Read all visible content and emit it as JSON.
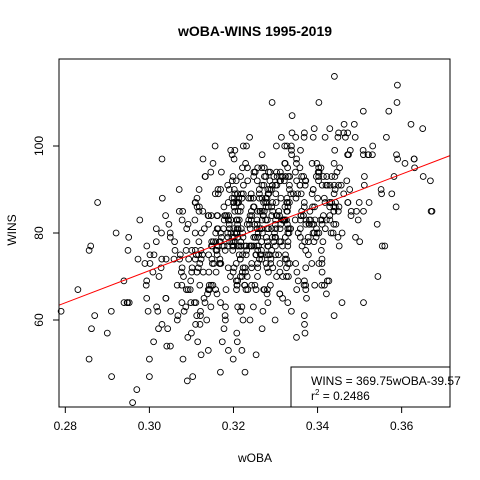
{
  "chart_data": {
    "type": "scatter",
    "title": "wOBA-WINS 1995-2019",
    "xlabel": "wOBA",
    "ylabel": "WINS",
    "xlim": [
      0.2785,
      0.3715
    ],
    "ylim": [
      40,
      120
    ],
    "xticks": [
      "0.28",
      "0.30",
      "0.32",
      "0.34",
      "0.36"
    ],
    "yticks": [
      "60",
      "80",
      "100"
    ],
    "grid": false,
    "regression": {
      "slope": 369.75,
      "intercept": -39.57,
      "color": "#ff0000"
    },
    "legend": {
      "position": "bottom-right",
      "equation": "WINS = 369.75wOBA-39.57",
      "r2_prefix": "r",
      "r2_sup": "2",
      "r2_value": " = 0.2486"
    },
    "points_note": "750 team-seasons; scatter cloud centered near wOBA 0.325 / 81 wins",
    "series": [
      {
        "x": [
          0.279,
          0.283,
          0.287,
          0.29,
          0.291,
          0.296,
          0.297,
          0.3,
          0.3,
          0.301,
          0.303,
          0.305,
          0.308,
          0.31,
          0.311,
          0.3115,
          0.314,
          0.318,
          0.321,
          0.322,
          0.327,
          0.331,
          0.335,
          0.337,
          0.341,
          0.344,
          0.345,
          0.348,
          0.352,
          0.359,
          0.363,
          0.365,
          0.367
        ],
        "y": [
          62,
          67,
          61,
          57,
          47,
          41,
          44,
          47,
          51,
          55,
          59,
          54,
          51,
          57,
          59,
          55,
          53,
          61,
          63,
          53,
          62,
          66,
          56,
          57,
          68,
          116,
          103,
          85,
          98,
          114,
          97,
          104,
          85
        ]
      }
    ]
  }
}
